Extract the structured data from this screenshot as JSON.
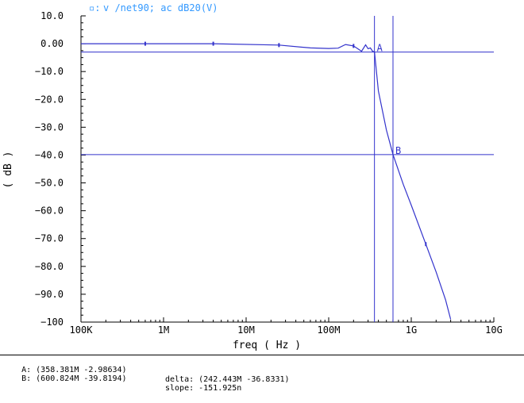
{
  "chart_data": {
    "type": "line",
    "legend_label": "v /net90; ac dB20(V)",
    "xlabel": "freq ( Hz )",
    "ylabel": "( dB )",
    "x_scale": "log",
    "xlim": [
      100000,
      10000000000
    ],
    "ylim": [
      -100,
      10
    ],
    "x_ticks": [
      {
        "value": 100000,
        "label": "100K"
      },
      {
        "value": 1000000,
        "label": "1M"
      },
      {
        "value": 10000000,
        "label": "10M"
      },
      {
        "value": 100000000,
        "label": "100M"
      },
      {
        "value": 1000000000,
        "label": "1G"
      },
      {
        "value": 10000000000,
        "label": "10G"
      }
    ],
    "y_ticks": [
      {
        "value": 10,
        "label": "10.0"
      },
      {
        "value": 0,
        "label": "0.00"
      },
      {
        "value": -10,
        "label": "-10.0"
      },
      {
        "value": -20,
        "label": "-20.0"
      },
      {
        "value": -30,
        "label": "-30.0"
      },
      {
        "value": -40,
        "label": "-40.0"
      },
      {
        "value": -50,
        "label": "-50.0"
      },
      {
        "value": -60,
        "label": "-60.0"
      },
      {
        "value": -70,
        "label": "-70.0"
      },
      {
        "value": -80,
        "label": "-80.0"
      },
      {
        "value": -90,
        "label": "-90.0"
      },
      {
        "value": -100,
        "label": "-100"
      }
    ],
    "series": [
      {
        "color": "#3333cc",
        "x": [
          100000,
          600000,
          4000000,
          25000000,
          60000000,
          100000000,
          130000000,
          160000000,
          200000000,
          220000000,
          250000000,
          280000000,
          300000000,
          320000000,
          340000000,
          358381000,
          400000000,
          500000000,
          600824000,
          800000000,
          1000000000,
          1500000000,
          2000000000,
          2600000000,
          3000000000
        ],
        "y": [
          0,
          0,
          0,
          -0.5,
          -1.5,
          -1.7,
          -1.6,
          -0.3,
          -0.8,
          -1.6,
          -2.7,
          -0.4,
          -1.8,
          -1.5,
          -2.7,
          -2.98634,
          -17,
          -31,
          -39.8194,
          -50.5,
          -58,
          -72,
          -82,
          -92,
          -99
        ]
      }
    ],
    "markers": [
      {
        "name": "A",
        "x": 358381000,
        "y": -2.98634
      },
      {
        "name": "B",
        "x": 600824000,
        "y": -39.8194
      }
    ],
    "readout": {
      "a": "A: (358.381M -2.98634)",
      "b": "B: (600.824M -39.8194)",
      "delta": "delta: (242.443M -36.8331)",
      "slope": "slope: -151.925n"
    },
    "grid": false,
    "legend_position": "top-left",
    "colors": {
      "trace": "#3333cc",
      "cursor": "#3333cc",
      "axes": "#000000",
      "legend": "#3399ff"
    }
  }
}
